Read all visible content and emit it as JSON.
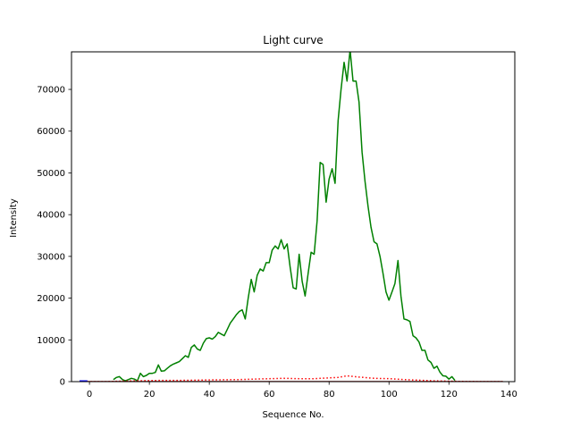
{
  "chart_data": {
    "type": "line",
    "title": "Light curve",
    "xlabel": "Sequence No.",
    "ylabel": "Intensity",
    "xlim": [
      -6,
      142
    ],
    "ylim": [
      0,
      79000
    ],
    "xticks": [
      0,
      20,
      40,
      60,
      80,
      100,
      120,
      140
    ],
    "yticks": [
      0,
      10000,
      20000,
      30000,
      40000,
      50000,
      60000,
      70000
    ],
    "grid": false,
    "legend": "none",
    "series": [
      {
        "color": "#008000",
        "style": "solid",
        "x": [
          8,
          9,
          10,
          11,
          12,
          13,
          14,
          15,
          16,
          17,
          18,
          19,
          20,
          21,
          22,
          23,
          24,
          25,
          26,
          27,
          28,
          29,
          30,
          31,
          32,
          33,
          34,
          35,
          36,
          37,
          38,
          39,
          40,
          41,
          42,
          43,
          44,
          45,
          46,
          47,
          48,
          49,
          50,
          51,
          52,
          53,
          54,
          55,
          56,
          57,
          58,
          59,
          60,
          61,
          62,
          63,
          64,
          65,
          66,
          67,
          68,
          69,
          70,
          71,
          72,
          73,
          74,
          75,
          76,
          77,
          78,
          79,
          80,
          81,
          82,
          83,
          84,
          85,
          86,
          87,
          88,
          89,
          90,
          91,
          92,
          93,
          94,
          95,
          96,
          97,
          98,
          99,
          100,
          101,
          102,
          103,
          104,
          105,
          106,
          107,
          108,
          109,
          110,
          111,
          112,
          113,
          114,
          115,
          116,
          117,
          118,
          119,
          120,
          121,
          122
        ],
        "y": [
          500,
          1000,
          1200,
          500,
          200,
          500,
          800,
          600,
          200,
          2000,
          1200,
          1500,
          2000,
          2000,
          2200,
          4000,
          2500,
          2600,
          3200,
          3800,
          4200,
          4500,
          4800,
          5500,
          6200,
          5800,
          8200,
          8800,
          7800,
          7500,
          9200,
          10300,
          10500,
          10200,
          10800,
          11800,
          11400,
          11000,
          12500,
          14000,
          15000,
          16000,
          16800,
          17200,
          15000,
          20000,
          24500,
          21500,
          25500,
          27000,
          26500,
          28500,
          28500,
          31500,
          32500,
          31800,
          34000,
          31800,
          33000,
          27500,
          22500,
          22200,
          30500,
          24000,
          20500,
          26000,
          31000,
          30500,
          38500,
          52500,
          52000,
          43000,
          48500,
          51000,
          47500,
          62500,
          70000,
          76500,
          72000,
          79500,
          72000,
          72000,
          67000,
          55000,
          48000,
          42000,
          37000,
          33500,
          33000,
          30000,
          26000,
          21500,
          19500,
          21500,
          23500,
          29000,
          20500,
          15000,
          14800,
          14400,
          11000,
          10500,
          9500,
          7500,
          7500,
          5200,
          4600,
          3200,
          3700,
          2300,
          1400,
          1300,
          600,
          1200,
          300
        ]
      },
      {
        "color": "#ff0000",
        "style": "dotted",
        "x": [
          -2,
          5,
          10,
          15,
          20,
          25,
          30,
          35,
          40,
          45,
          50,
          55,
          60,
          65,
          70,
          75,
          80,
          83,
          86,
          90,
          95,
          100,
          105,
          110,
          115,
          120,
          125,
          130,
          138
        ],
        "y": [
          0,
          0,
          100,
          200,
          250,
          300,
          300,
          350,
          400,
          450,
          500,
          600,
          700,
          800,
          700,
          700,
          900,
          1000,
          1400,
          1100,
          800,
          700,
          500,
          350,
          200,
          100,
          50,
          0,
          0
        ]
      },
      {
        "color": "#8b0000",
        "style": "solid",
        "x": [
          -2,
          138
        ],
        "y": [
          0,
          0
        ]
      },
      {
        "color": "#0000ff",
        "style": "solid",
        "x": [
          -3.3,
          -0.7
        ],
        "y": [
          0,
          0
        ]
      }
    ]
  }
}
